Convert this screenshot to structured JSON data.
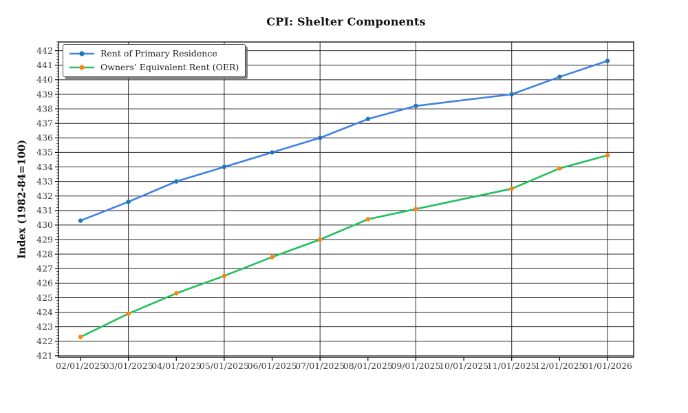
{
  "chart_data": {
    "type": "line",
    "title": "CPI: Shelter Components",
    "ylabel": "Index (1982-84=100)",
    "xlabel": "",
    "x": [
      "02/01/2025",
      "03/01/2025",
      "04/01/2025",
      "05/01/2025",
      "06/01/2025",
      "07/01/2025",
      "08/01/2025",
      "09/01/2025",
      "10/01/2025",
      "11/01/2025",
      "12/01/2025",
      "01/01/2026"
    ],
    "series": [
      {
        "name": "Rent of Primary Residence",
        "line_color": "#4080e8",
        "marker_color": "#1f77b4",
        "values": [
          430.3,
          431.6,
          433.0,
          434.0,
          435.0,
          436.0,
          437.3,
          438.2,
          null,
          439.0,
          440.2,
          441.3
        ]
      },
      {
        "name": "Owners’ Equivalent Rent (OER)",
        "line_color": "#22c05e",
        "marker_color": "#ff820d",
        "values": [
          422.3,
          423.9,
          425.3,
          426.5,
          427.8,
          429.0,
          430.4,
          431.1,
          null,
          432.5,
          433.9,
          434.8
        ]
      }
    ],
    "ylim": [
      420.9,
      442.6
    ],
    "ytick_min": 421,
    "ytick_max": 442,
    "ytick_step": 1,
    "y_minor_step": 0.2,
    "x_gridline_indices": [
      1,
      3,
      5,
      7,
      9,
      11
    ],
    "grid": true,
    "legend_position": "upper left",
    "colors": {
      "grid": "#262626",
      "spine": "#000000",
      "tick_label": "#3c3c3c"
    }
  }
}
